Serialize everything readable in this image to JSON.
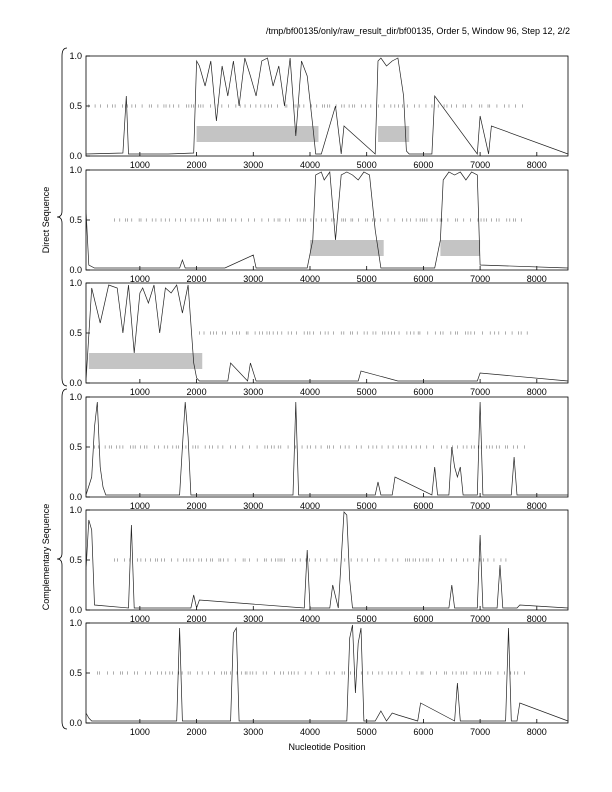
{
  "title": "/tmp/bf00135/only/raw_result_dir/bf00135, Order 5, Window 96, Step 12, 2/2",
  "group_labels": {
    "direct": "Direct Sequence",
    "complementary": "Complementary Sequence"
  },
  "x_axis_label": "Nucleotide Position",
  "chart_data": [
    {
      "type": "line",
      "strand": "direct",
      "frame": 1,
      "xlim": [
        50,
        8550
      ],
      "ylim": [
        0,
        1
      ],
      "x_ticks": [
        1000,
        2000,
        3000,
        4000,
        5000,
        6000,
        7000,
        8000
      ],
      "y_ticks": [
        "0.0",
        "0.5",
        "1.0"
      ],
      "series": [
        {
          "x": [
            50,
            700,
            760,
            800,
            1500,
            1950,
            2000,
            2050,
            2150,
            2250,
            2350,
            2450,
            2550,
            2650,
            2750,
            2850,
            2950,
            3050,
            3150,
            3250,
            3350,
            3450,
            3550,
            3650,
            3750,
            3850,
            3950,
            4050,
            4100,
            4200,
            4450,
            4550,
            4600,
            5150,
            5200,
            5250,
            5350,
            5450,
            5550,
            5650,
            5700,
            5750,
            6150,
            6200,
            6950,
            7000,
            7150,
            7200,
            8550
          ],
          "y": [
            0.02,
            0.03,
            0.6,
            0.02,
            0.02,
            0.03,
            0.95,
            0.9,
            0.7,
            0.95,
            0.35,
            0.9,
            0.6,
            0.95,
            0.5,
            0.98,
            0.8,
            0.6,
            0.95,
            0.98,
            0.7,
            0.9,
            0.5,
            0.98,
            0.2,
            0.95,
            0.8,
            0.3,
            0.02,
            0.02,
            0.5,
            0.02,
            0.3,
            0.02,
            0.95,
            0.98,
            0.9,
            0.95,
            0.98,
            0.6,
            0.05,
            0.02,
            0.02,
            0.6,
            0.02,
            0.4,
            0.02,
            0.3,
            0.02
          ]
        }
      ],
      "bands": [
        [
          2000,
          4150
        ],
        [
          5200,
          5750
        ]
      ],
      "midline_ticks": {
        "from": 100,
        "to": 7800
      }
    },
    {
      "type": "line",
      "strand": "direct",
      "frame": 2,
      "xlim": [
        50,
        8550
      ],
      "ylim": [
        0,
        1
      ],
      "x_ticks": [
        1000,
        2000,
        3000,
        4000,
        5000,
        6000,
        7000,
        8000
      ],
      "y_ticks": [
        "0.0",
        "0.5",
        "1.0"
      ],
      "series": [
        {
          "x": [
            50,
            100,
            200,
            1700,
            1750,
            1800,
            2500,
            3000,
            3050,
            3950,
            4050,
            4100,
            4200,
            4250,
            4350,
            4450,
            4550,
            4650,
            4750,
            4850,
            4950,
            5050,
            5150,
            5250,
            6200,
            6300,
            6350,
            6450,
            6550,
            6650,
            6750,
            6850,
            6950,
            7000,
            8550
          ],
          "y": [
            0.6,
            0.05,
            0.02,
            0.02,
            0.1,
            0.02,
            0.02,
            0.15,
            0.02,
            0.02,
            0.3,
            0.95,
            0.98,
            0.9,
            0.98,
            0.3,
            0.95,
            0.98,
            0.95,
            0.9,
            0.98,
            0.95,
            0.4,
            0.02,
            0.02,
            0.3,
            0.9,
            0.98,
            0.95,
            0.98,
            0.9,
            0.98,
            0.95,
            0.05,
            0.02
          ]
        }
      ],
      "bands": [
        [
          4000,
          5300
        ],
        [
          6300,
          7000
        ]
      ],
      "midline_ticks": {
        "from": 550,
        "to": 7750
      }
    },
    {
      "type": "line",
      "strand": "direct",
      "frame": 3,
      "xlim": [
        50,
        8550
      ],
      "ylim": [
        0,
        1
      ],
      "x_ticks": [
        1000,
        2000,
        3000,
        4000,
        5000,
        6000,
        7000,
        8000
      ],
      "y_ticks": [
        "0.0",
        "0.5",
        "1.0"
      ],
      "series": [
        {
          "x": [
            50,
            150,
            300,
            450,
            600,
            700,
            800,
            900,
            1000,
            1050,
            1150,
            1250,
            1350,
            1450,
            1550,
            1650,
            1750,
            1850,
            1950,
            2000,
            2050,
            2550,
            2600,
            2900,
            2950,
            3050,
            4850,
            4900,
            5550,
            6950,
            7000,
            8550
          ],
          "y": [
            0.02,
            0.95,
            0.6,
            0.98,
            0.95,
            0.5,
            0.98,
            0.3,
            0.9,
            0.95,
            0.8,
            0.98,
            0.5,
            0.95,
            0.9,
            0.98,
            0.7,
            0.98,
            0.2,
            0.05,
            0.02,
            0.02,
            0.2,
            0.02,
            0.2,
            0.02,
            0.02,
            0.12,
            0.02,
            0.02,
            0.1,
            0.02
          ]
        }
      ],
      "bands": [
        [
          100,
          2100
        ]
      ],
      "midline_ticks": {
        "from": 2050,
        "to": 7850
      }
    },
    {
      "type": "line",
      "strand": "complementary",
      "frame": 1,
      "xlim": [
        50,
        8550
      ],
      "ylim": [
        0,
        1
      ],
      "x_ticks": [
        1000,
        2000,
        3000,
        4000,
        5000,
        6000,
        7000,
        8000
      ],
      "y_ticks": [
        "0.0",
        "0.5",
        "1.0"
      ],
      "series": [
        {
          "x": [
            50,
            150,
            200,
            250,
            300,
            350,
            400,
            1700,
            1750,
            1800,
            1850,
            1900,
            3700,
            3750,
            3800,
            5150,
            5200,
            5250,
            5450,
            5500,
            6150,
            6200,
            6250,
            6450,
            6500,
            6550,
            6600,
            6650,
            6700,
            6950,
            7000,
            7050,
            7550,
            7600,
            7650,
            8550
          ],
          "y": [
            0.02,
            0.2,
            0.7,
            0.95,
            0.3,
            0.1,
            0.02,
            0.02,
            0.5,
            0.95,
            0.6,
            0.02,
            0.02,
            0.95,
            0.02,
            0.02,
            0.15,
            0.02,
            0.02,
            0.2,
            0.02,
            0.3,
            0.02,
            0.02,
            0.5,
            0.3,
            0.2,
            0.3,
            0.02,
            0.02,
            0.95,
            0.02,
            0.02,
            0.4,
            0.02,
            0.02
          ]
        }
      ],
      "bands": [],
      "midline_ticks": {
        "from": 200,
        "to": 7800
      }
    },
    {
      "type": "line",
      "strand": "complementary",
      "frame": 2,
      "xlim": [
        50,
        8550
      ],
      "ylim": [
        0,
        1
      ],
      "x_ticks": [
        1000,
        2000,
        3000,
        4000,
        5000,
        6000,
        7000,
        8000
      ],
      "y_ticks": [
        "0.0",
        "0.5",
        "1.0"
      ],
      "series": [
        {
          "x": [
            50,
            100,
            150,
            200,
            800,
            850,
            900,
            1900,
            1950,
            2000,
            2050,
            3900,
            3950,
            4000,
            4350,
            4400,
            4500,
            4550,
            4600,
            4650,
            4700,
            4750,
            6450,
            6500,
            6550,
            6950,
            7000,
            7050,
            7300,
            7350,
            7400,
            7650,
            7700,
            8550
          ],
          "y": [
            0.4,
            0.9,
            0.8,
            0.05,
            0.02,
            0.85,
            0.02,
            0.02,
            0.15,
            0.02,
            0.1,
            0.02,
            0.6,
            0.02,
            0.02,
            0.25,
            0.02,
            0.5,
            0.98,
            0.95,
            0.3,
            0.02,
            0.02,
            0.25,
            0.02,
            0.02,
            0.75,
            0.02,
            0.02,
            0.45,
            0.02,
            0.02,
            0.05,
            0.02
          ]
        }
      ],
      "bands": [],
      "midline_ticks": {
        "from": 550,
        "to": 7550
      }
    },
    {
      "type": "line",
      "strand": "complementary",
      "frame": 3,
      "xlim": [
        50,
        8550
      ],
      "ylim": [
        0,
        1
      ],
      "x_ticks": [
        1000,
        2000,
        3000,
        4000,
        5000,
        6000,
        7000,
        8000
      ],
      "y_ticks": [
        "0.0",
        "0.5",
        "1.0"
      ],
      "series": [
        {
          "x": [
            50,
            100,
            150,
            1650,
            1700,
            1750,
            2600,
            2650,
            2700,
            2750,
            4650,
            4700,
            4750,
            4800,
            4850,
            4900,
            4950,
            5150,
            5250,
            5350,
            5450,
            5550,
            5900,
            5950,
            6550,
            6600,
            6650,
            7450,
            7500,
            7550,
            7650,
            7700,
            8550
          ],
          "y": [
            0.1,
            0.05,
            0.02,
            0.02,
            0.95,
            0.02,
            0.02,
            0.9,
            0.95,
            0.02,
            0.02,
            0.85,
            0.98,
            0.3,
            0.8,
            0.95,
            0.02,
            0.02,
            0.12,
            0.02,
            0.1,
            0.08,
            0.02,
            0.2,
            0.02,
            0.4,
            0.02,
            0.02,
            0.95,
            0.02,
            0.02,
            0.2,
            0.02
          ]
        }
      ],
      "bands": [],
      "midline_ticks": {
        "from": 250,
        "to": 7800
      }
    }
  ]
}
